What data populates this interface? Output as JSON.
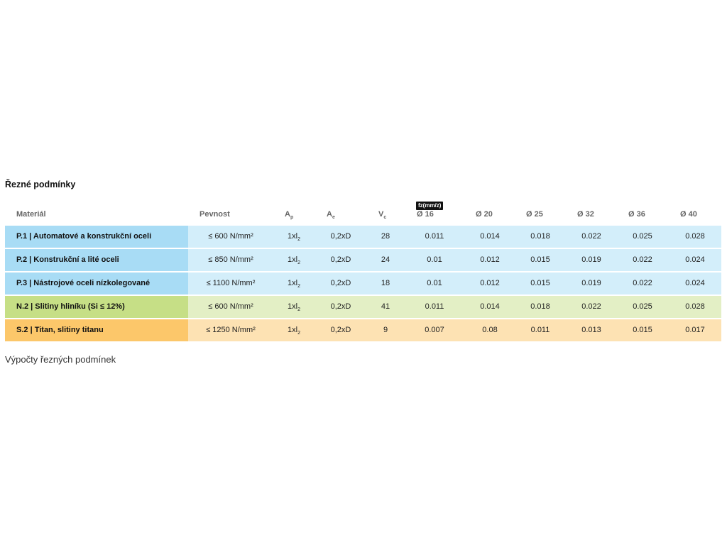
{
  "title": "Řezné podmínky",
  "fz_label": "fz(mm/z)",
  "header": {
    "material": "Materiál",
    "strength": "Pevnost",
    "ap": "A",
    "ap_sub": "p",
    "ae": "A",
    "ae_sub": "e",
    "vc": "V",
    "vc_sub": "c",
    "d16": "Ø 16",
    "d20": "Ø 20",
    "d25": "Ø 25",
    "d32": "Ø 32",
    "d36": "Ø 36",
    "d40": "Ø 40"
  },
  "rows": [
    {
      "material": "P.1 | Automatové a konstrukční oceli",
      "strength": "≤ 600 N/mm²",
      "ap": "1xl",
      "ap_sub": "2",
      "ae": "0,2xD",
      "vc": "28",
      "d16": "0.011",
      "d20": "0.014",
      "d25": "0.018",
      "d32": "0.022",
      "d36": "0.025",
      "d40": "0.028",
      "color_main": "#a8dcf5",
      "color_light": "#d3eefa"
    },
    {
      "material": "P.2 | Konstrukční a lité oceli",
      "strength": "≤ 850 N/mm²",
      "ap": "1xl",
      "ap_sub": "2",
      "ae": "0,2xD",
      "vc": "24",
      "d16": "0.01",
      "d20": "0.012",
      "d25": "0.015",
      "d32": "0.019",
      "d36": "0.022",
      "d40": "0.024",
      "color_main": "#a8dcf5",
      "color_light": "#d3eefa"
    },
    {
      "material": "P.3 | Nástrojové oceli nízkolegované",
      "strength": "≤ 1100 N/mm²",
      "ap": "1xl",
      "ap_sub": "2",
      "ae": "0,2xD",
      "vc": "18",
      "d16": "0.01",
      "d20": "0.012",
      "d25": "0.015",
      "d32": "0.019",
      "d36": "0.022",
      "d40": "0.024",
      "color_main": "#a8dcf5",
      "color_light": "#d3eefa"
    },
    {
      "material": "N.2 | Slitiny hliníku (Si ≤ 12%)",
      "strength": "≤ 600 N/mm²",
      "ap": "1xl",
      "ap_sub": "2",
      "ae": "0,2xD",
      "vc": "41",
      "d16": "0.011",
      "d20": "0.014",
      "d25": "0.018",
      "d32": "0.022",
      "d36": "0.025",
      "d40": "0.028",
      "color_main": "#c6df86",
      "color_light": "#e3efc5"
    },
    {
      "material": "S.2 | Titan, slitiny titanu",
      "strength": "≤ 1250 N/mm²",
      "ap": "1xl",
      "ap_sub": "2",
      "ae": "0,2xD",
      "vc": "9",
      "d16": "0.007",
      "d20": "0.08",
      "d25": "0.011",
      "d32": "0.013",
      "d36": "0.015",
      "d40": "0.017",
      "color_main": "#fcc76a",
      "color_light": "#fde2b3"
    }
  ],
  "caption": "Výpočty řezných podmínek"
}
